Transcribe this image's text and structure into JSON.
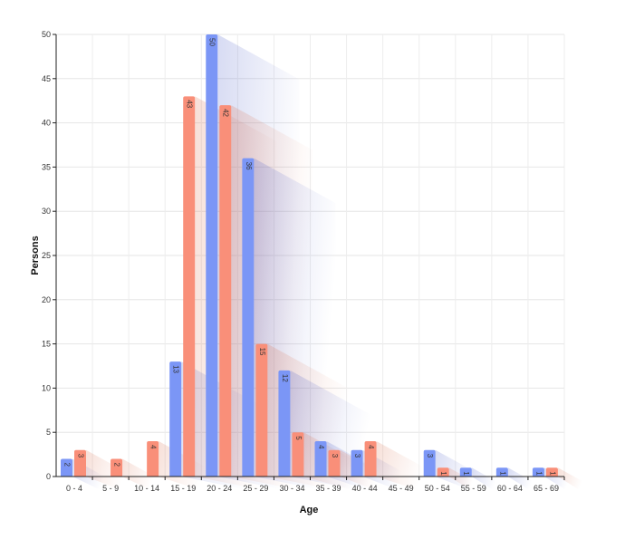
{
  "chart_data": {
    "type": "bar",
    "title": "",
    "xlabel": "Age",
    "ylabel": "Persons",
    "ylim": [
      0,
      50
    ],
    "yticks": [
      0,
      5,
      10,
      15,
      20,
      25,
      30,
      35,
      40,
      45,
      50
    ],
    "grid": true,
    "legend": "none",
    "categories": [
      "0 - 4",
      "5 - 9",
      "10 - 14",
      "15 - 19",
      "20 - 24",
      "25 - 29",
      "30 - 34",
      "35 - 39",
      "40 - 44",
      "45 - 49",
      "50 - 54",
      "55 - 59",
      "60 - 64",
      "65 - 69"
    ],
    "series": [
      {
        "color": "#7b96f6",
        "shadow_color": "#4a5cc8",
        "values": [
          2,
          0,
          0,
          13,
          50,
          36,
          12,
          4,
          3,
          0,
          3,
          1,
          1,
          1
        ]
      },
      {
        "color": "#f98f79",
        "shadow_color": "#d9704f",
        "values": [
          3,
          2,
          4,
          43,
          42,
          15,
          5,
          3,
          4,
          0,
          1,
          0,
          0,
          1
        ]
      }
    ]
  }
}
